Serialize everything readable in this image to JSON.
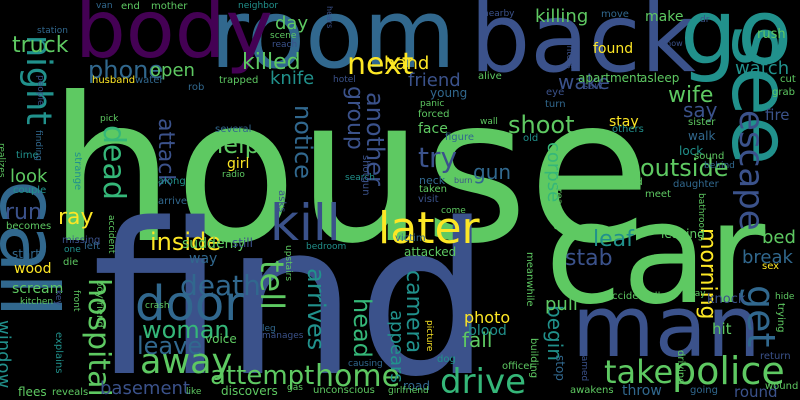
{
  "background_color": "#000000",
  "words": [
    {
      "text": "house",
      "color": "#5ec962"
    },
    {
      "text": "find",
      "color": "#3b528b"
    },
    {
      "text": "car",
      "color": "#5ec962"
    },
    {
      "text": "room",
      "color": "#31688e"
    },
    {
      "text": "body",
      "color": "#440154"
    },
    {
      "text": "back",
      "color": "#3b528b"
    },
    {
      "text": "go",
      "color": "#21918c"
    },
    {
      "text": "see",
      "color": "#21918c"
    },
    {
      "text": "call",
      "color": "#31688e"
    },
    {
      "text": "man",
      "color": "#3b528b"
    },
    {
      "text": "kill",
      "color": "#3b528b"
    },
    {
      "text": "later",
      "color": "#fde725"
    },
    {
      "text": "door",
      "color": "#31688e"
    },
    {
      "text": "police",
      "color": "#5ec962"
    },
    {
      "text": "night",
      "color": "#21918c"
    },
    {
      "text": "get",
      "color": "#31688e"
    },
    {
      "text": "escape",
      "color": "#3b528b"
    },
    {
      "text": "drive",
      "color": "#35b779"
    },
    {
      "text": "home",
      "color": "#5ec962"
    },
    {
      "text": "away",
      "color": "#5ec962"
    },
    {
      "text": "dead",
      "color": "#35b779"
    },
    {
      "text": "next",
      "color": "#fde725"
    },
    {
      "text": "tell",
      "color": "#5ec962"
    },
    {
      "text": "hospital",
      "color": "#5ec962"
    },
    {
      "text": "take",
      "color": "#5ec962"
    },
    {
      "text": "attempt",
      "color": "#5ec962"
    },
    {
      "text": "woman",
      "color": "#35b779"
    },
    {
      "text": "inside",
      "color": "#fde725"
    },
    {
      "text": "death",
      "color": "#31688e"
    },
    {
      "text": "phone",
      "color": "#31688e"
    },
    {
      "text": "killed",
      "color": "#5ec962"
    },
    {
      "text": "outside",
      "color": "#5ec962"
    },
    {
      "text": "arrives",
      "color": "#21918c"
    },
    {
      "text": "try",
      "color": "#3b528b"
    },
    {
      "text": "shoot",
      "color": "#5ec962"
    },
    {
      "text": "head",
      "color": "#35b779"
    },
    {
      "text": "leave",
      "color": "#31688e"
    },
    {
      "text": "camera",
      "color": "#21918c"
    },
    {
      "text": "help",
      "color": "#5ec962"
    },
    {
      "text": "notice",
      "color": "#31688e"
    },
    {
      "text": "another",
      "color": "#3b528b"
    },
    {
      "text": "group",
      "color": "#3b528b"
    },
    {
      "text": "truck",
      "color": "#5ec962"
    },
    {
      "text": "hand",
      "color": "#fde725"
    },
    {
      "text": "attack",
      "color": "#3b528b"
    },
    {
      "text": "ray",
      "color": "#fde725"
    },
    {
      "text": "run",
      "color": "#3b528b"
    },
    {
      "text": "leaf",
      "color": "#21918c"
    },
    {
      "text": "stab",
      "color": "#3b528b"
    },
    {
      "text": "killing",
      "color": "#5ec962"
    },
    {
      "text": "wake",
      "color": "#3b528b"
    },
    {
      "text": "watch",
      "color": "#21918c"
    },
    {
      "text": "wife",
      "color": "#5ec962"
    },
    {
      "text": "say",
      "color": "#3b528b"
    },
    {
      "text": "fire",
      "color": "#3b528b"
    },
    {
      "text": "morning",
      "color": "#fde725"
    },
    {
      "text": "break",
      "color": "#31688e"
    },
    {
      "text": "bed",
      "color": "#5ec962"
    },
    {
      "text": "open",
      "color": "#5ec962"
    },
    {
      "text": "knife",
      "color": "#21918c"
    },
    {
      "text": "friend",
      "color": "#3b528b"
    },
    {
      "text": "day",
      "color": "#5ec962"
    },
    {
      "text": "look",
      "color": "#5ec962"
    },
    {
      "text": "window",
      "color": "#21918c"
    },
    {
      "text": "corpse",
      "color": "#35b779"
    },
    {
      "text": "gun",
      "color": "#31688e"
    },
    {
      "text": "begin",
      "color": "#21918c"
    },
    {
      "text": "pull",
      "color": "#5ec962"
    },
    {
      "text": "fall",
      "color": "#5ec962"
    },
    {
      "text": "basement",
      "color": "#3b528b"
    },
    {
      "text": "appears",
      "color": "#21918c"
    },
    {
      "text": "photo",
      "color": "#fde725"
    },
    {
      "text": "blood",
      "color": "#21918c"
    },
    {
      "text": "suddenly",
      "color": "#5ec962"
    },
    {
      "text": "wood",
      "color": "#fde725"
    },
    {
      "text": "scream",
      "color": "#5ec962"
    },
    {
      "text": "way",
      "color": "#31688e"
    },
    {
      "text": "stay",
      "color": "#fde725"
    },
    {
      "text": "found",
      "color": "#fde725"
    },
    {
      "text": "make",
      "color": "#5ec962"
    },
    {
      "text": "rush",
      "color": "#5ec962"
    },
    {
      "text": "apartment",
      "color": "#5ec962"
    },
    {
      "text": "asleep",
      "color": "#5ec962"
    },
    {
      "text": "girl",
      "color": "#fde725"
    },
    {
      "text": "still",
      "color": "#3b528b"
    },
    {
      "text": "knock",
      "color": "#3b528b"
    },
    {
      "text": "hit",
      "color": "#5ec962"
    },
    {
      "text": "round",
      "color": "#3b528b"
    },
    {
      "text": "throw",
      "color": "#31688e"
    },
    {
      "text": "face",
      "color": "#5ec962"
    },
    {
      "text": "young",
      "color": "#31688e"
    },
    {
      "text": "attacked",
      "color": "#5ec962"
    },
    {
      "text": "voice",
      "color": "#5ec962"
    },
    {
      "text": "discovers",
      "color": "#5ec962"
    },
    {
      "text": "leaving",
      "color": "#5ec962"
    },
    {
      "text": "walk",
      "color": "#31688e"
    },
    {
      "text": "lock",
      "color": "#21918c"
    },
    {
      "text": "cut",
      "color": "#5ec962"
    },
    {
      "text": "grab",
      "color": "#5ec962"
    },
    {
      "text": "road",
      "color": "#31688e"
    },
    {
      "text": "time",
      "color": "#21918c"
    },
    {
      "text": "start",
      "color": "#31688e"
    },
    {
      "text": "strange",
      "color": "#21918c"
    },
    {
      "text": "several",
      "color": "#31688e"
    },
    {
      "text": "sister",
      "color": "#5ec962"
    },
    {
      "text": "others",
      "color": "#21918c"
    },
    {
      "text": "trapped",
      "color": "#5ec962"
    },
    {
      "text": "end",
      "color": "#5ec962"
    },
    {
      "text": "mother",
      "color": "#5ec962"
    },
    {
      "text": "van",
      "color": "#31688e"
    },
    {
      "text": "neighbor",
      "color": "#21918c"
    },
    {
      "text": "move",
      "color": "#31688e"
    },
    {
      "text": "station",
      "color": "#31688e"
    },
    {
      "text": "water",
      "color": "#31688e"
    },
    {
      "text": "husband",
      "color": "#fde725"
    },
    {
      "text": "rob",
      "color": "#31688e"
    },
    {
      "text": "scene",
      "color": "#5ec962"
    },
    {
      "text": "reach",
      "color": "#3b528b"
    },
    {
      "text": "hotel",
      "color": "#3b528b"
    },
    {
      "text": "alive",
      "color": "#5ec962"
    },
    {
      "text": "eye",
      "color": "#3b528b"
    },
    {
      "text": "saw",
      "color": "#3b528b"
    },
    {
      "text": "turn",
      "color": "#31688e"
    },
    {
      "text": "panic",
      "color": "#5ec962"
    },
    {
      "text": "forced",
      "color": "#5ec962"
    },
    {
      "text": "wall",
      "color": "#5ec962"
    },
    {
      "text": "old",
      "color": "#21918c"
    },
    {
      "text": "figure",
      "color": "#31688e"
    },
    {
      "text": "neck",
      "color": "#31688e"
    },
    {
      "text": "taken",
      "color": "#5ec962"
    },
    {
      "text": "visit",
      "color": "#3b528b"
    },
    {
      "text": "come",
      "color": "#5ec962"
    },
    {
      "text": "victim",
      "color": "#31688e"
    },
    {
      "text": "pick",
      "color": "#5ec962"
    },
    {
      "text": "radio",
      "color": "#5ec962"
    },
    {
      "text": "along",
      "color": "#21918c"
    },
    {
      "text": "arrive",
      "color": "#31688e"
    },
    {
      "text": "accident",
      "color": "#5ec962"
    },
    {
      "text": "couple",
      "color": "#21918c"
    },
    {
      "text": "becomes",
      "color": "#5ec962"
    },
    {
      "text": "one",
      "color": "#21918c"
    },
    {
      "text": "left",
      "color": "#31688e"
    },
    {
      "text": "die",
      "color": "#5ec962"
    },
    {
      "text": "missing",
      "color": "#3b528b"
    },
    {
      "text": "kitchen",
      "color": "#5ec962"
    },
    {
      "text": "key",
      "color": "#3b528b"
    },
    {
      "text": "front",
      "color": "#5ec962"
    },
    {
      "text": "boyfriend",
      "color": "#5ec962"
    },
    {
      "text": "explains",
      "color": "#21918c"
    },
    {
      "text": "flees",
      "color": "#5ec962"
    },
    {
      "text": "reveals",
      "color": "#5ec962"
    },
    {
      "text": "like",
      "color": "#5ec962"
    },
    {
      "text": "gas",
      "color": "#5ec962"
    },
    {
      "text": "unconscious",
      "color": "#5ec962"
    },
    {
      "text": "girlfriend",
      "color": "#5ec962"
    },
    {
      "text": "manages",
      "color": "#3b528b"
    },
    {
      "text": "leg",
      "color": "#31688e"
    },
    {
      "text": "crash",
      "color": "#5ec962"
    },
    {
      "text": "upstairs",
      "color": "#5ec962"
    },
    {
      "text": "bedroom",
      "color": "#21918c"
    },
    {
      "text": "asks",
      "color": "#3b528b"
    },
    {
      "text": "search",
      "color": "#21918c"
    },
    {
      "text": "shotgun",
      "color": "#3b528b"
    },
    {
      "text": "picture",
      "color": "#fde725"
    },
    {
      "text": "causing",
      "color": "#31688e"
    },
    {
      "text": "dog",
      "color": "#21918c"
    },
    {
      "text": "officer",
      "color": "#5ec962"
    },
    {
      "text": "building",
      "color": "#5ec962"
    },
    {
      "text": "stop",
      "color": "#31688e"
    },
    {
      "text": "awakens",
      "color": "#5ec962"
    },
    {
      "text": "going",
      "color": "#31688e"
    },
    {
      "text": "wound",
      "color": "#5ec962"
    },
    {
      "text": "return",
      "color": "#3b528b"
    },
    {
      "text": "trying",
      "color": "#5ec962"
    },
    {
      "text": "hide",
      "color": "#5ec962"
    },
    {
      "text": "sex",
      "color": "#fde725"
    },
    {
      "text": "driving",
      "color": "#5ec962"
    },
    {
      "text": "accidentally",
      "color": "#5ec962"
    },
    {
      "text": "may",
      "color": "#5ec962"
    },
    {
      "text": "named",
      "color": "#3b528b"
    },
    {
      "text": "screaming",
      "color": "#5ec962"
    },
    {
      "text": "meanwhile",
      "color": "#5ec962"
    },
    {
      "text": "bathroom",
      "color": "#5ec962"
    },
    {
      "text": "daughter",
      "color": "#31688e"
    },
    {
      "text": "meet",
      "color": "#5ec962"
    },
    {
      "text": "sound",
      "color": "#5ec962"
    },
    {
      "text": "behind",
      "color": "#31688e"
    },
    {
      "text": "child",
      "color": "#5ec962"
    },
    {
      "text": "burn",
      "color": "#3b528b"
    },
    {
      "text": "realizes",
      "color": "#5ec962"
    },
    {
      "text": "finding",
      "color": "#31688e"
    },
    {
      "text": "people",
      "color": "#3b528b"
    },
    {
      "text": "nearby",
      "color": "#3b528b"
    },
    {
      "text": "enters",
      "color": "#3b528b"
    },
    {
      "text": "show",
      "color": "#3b528b"
    },
    {
      "text": "dr",
      "color": "#3b528b"
    },
    {
      "text": "hears",
      "color": "#3b528b"
    }
  ]
}
